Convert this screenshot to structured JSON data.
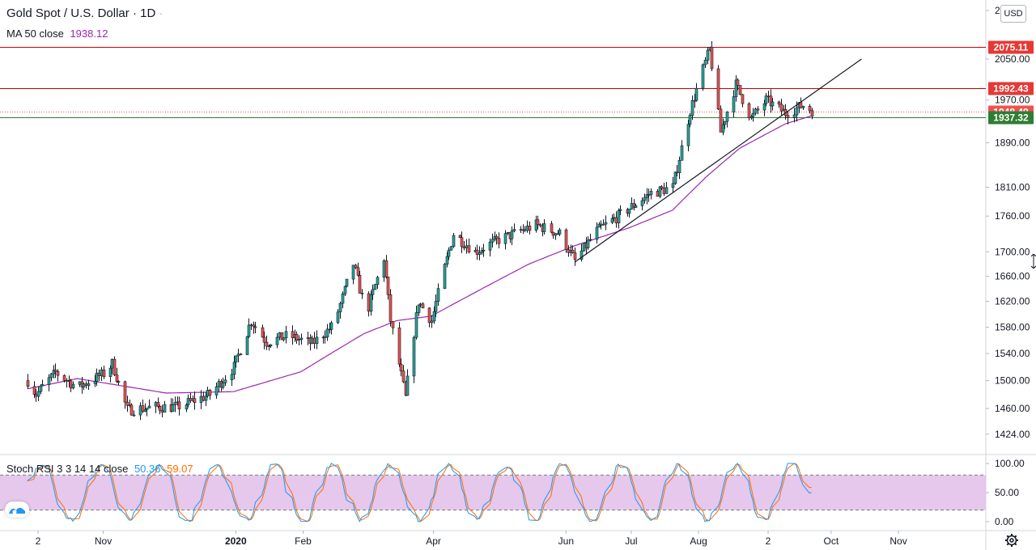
{
  "symbol": {
    "name": "Gold Spot",
    "sep": "/",
    "quote": "U.S. Dollar",
    "interval": "1D",
    "dot": "·"
  },
  "ma": {
    "label": "MA 50 close",
    "value": "1938.12",
    "color": "#9c27b0"
  },
  "stoch": {
    "label": "Stoch RSI 3 3 14 14 close",
    "k_value": "50.36",
    "d_value": "59.07",
    "k_color": "#2196f3",
    "d_color": "#ff6d00",
    "ticks": [
      "100.00",
      "50.00",
      "0.00"
    ],
    "band_upper": 80,
    "band_lower": 20
  },
  "currency_button": "USD",
  "price_axis_ticks": [
    "2",
    "2050.00",
    "1970.00",
    "1890.00",
    "1810.00",
    "1760.00",
    "1700.00",
    "1660.00",
    "1620.00",
    "1580.00",
    "1540.00",
    "1500.00",
    "1460.00",
    "1424.00"
  ],
  "price_levels": [
    {
      "label": "2075.11",
      "value": 2075.11,
      "color": "#e53935",
      "line_color": "#cc0000"
    },
    {
      "label": "1992.43",
      "value": 1992.43,
      "color": "#e53935",
      "line_color": "#cc0000"
    },
    {
      "label": "1948.49",
      "value": 1948.49,
      "color": "#ef5350",
      "line_color": "#ef5350",
      "dotted": true
    },
    {
      "label": "1937.32",
      "value": 1937.32,
      "color": "#2e7d32",
      "line_color": "#2e7d32"
    }
  ],
  "time_axis": [
    "2",
    "Nov",
    "2020",
    "Feb",
    "Apr",
    "Jun",
    "Jul",
    "Aug",
    "2",
    "Oct",
    "Nov"
  ],
  "time_axis_bold": "2020",
  "colors": {
    "up": "#26a69a",
    "down": "#ef5350",
    "trendline": "#131722",
    "band_fill": "#e1bee7",
    "grid": "#e0e3eb"
  },
  "icons": {
    "logo": "tradingview-logo-icon",
    "settings": "gear-icon"
  },
  "chart_data": {
    "type": "candlestick",
    "ticker": "Gold Spot / U.S. Dollar",
    "interval": "1D",
    "ylim": [
      1405,
      2110
    ],
    "price_path": [
      [
        "2019-09-27",
        1500
      ],
      [
        "2019-10-01",
        1480
      ],
      [
        "2019-10-10",
        1512
      ],
      [
        "2019-10-20",
        1490
      ],
      [
        "2019-11-01",
        1510
      ],
      [
        "2019-11-05",
        1525
      ],
      [
        "2019-11-12",
        1458
      ],
      [
        "2019-11-25",
        1462
      ],
      [
        "2019-12-05",
        1462
      ],
      [
        "2019-12-20",
        1480
      ],
      [
        "2019-12-31",
        1520
      ],
      [
        "2020-01-08",
        1590
      ],
      [
        "2020-01-15",
        1557
      ],
      [
        "2020-01-25",
        1567
      ],
      [
        "2020-02-05",
        1555
      ],
      [
        "2020-02-15",
        1583
      ],
      [
        "2020-02-24",
        1680
      ],
      [
        "2020-03-01",
        1600
      ],
      [
        "2020-03-09",
        1690
      ],
      [
        "2020-03-12",
        1590
      ],
      [
        "2020-03-19",
        1475
      ],
      [
        "2020-03-25",
        1620
      ],
      [
        "2020-03-31",
        1590
      ],
      [
        "2020-04-10",
        1730
      ],
      [
        "2020-04-20",
        1700
      ],
      [
        "2020-05-01",
        1720
      ],
      [
        "2020-05-18",
        1745
      ],
      [
        "2020-05-29",
        1730
      ],
      [
        "2020-06-05",
        1685
      ],
      [
        "2020-06-15",
        1735
      ],
      [
        "2020-06-25",
        1760
      ],
      [
        "2020-07-10",
        1800
      ],
      [
        "2020-07-20",
        1810
      ],
      [
        "2020-07-28",
        1950
      ],
      [
        "2020-08-06",
        2070
      ],
      [
        "2020-08-11",
        1910
      ],
      [
        "2020-08-18",
        2000
      ],
      [
        "2020-08-25",
        1935
      ],
      [
        "2020-09-01",
        1970
      ],
      [
        "2020-09-10",
        1945
      ],
      [
        "2020-09-18",
        1960
      ],
      [
        "2020-09-22",
        1950
      ]
    ],
    "ma50_path": [
      [
        "2019-09-27",
        1488
      ],
      [
        "2019-10-20",
        1503
      ],
      [
        "2019-11-30",
        1482
      ],
      [
        "2019-12-31",
        1484
      ],
      [
        "2020-01-31",
        1513
      ],
      [
        "2020-02-29",
        1570
      ],
      [
        "2020-03-15",
        1590
      ],
      [
        "2020-03-31",
        1597
      ],
      [
        "2020-05-15",
        1680
      ],
      [
        "2020-06-05",
        1710
      ],
      [
        "2020-06-30",
        1740
      ],
      [
        "2020-07-20",
        1770
      ],
      [
        "2020-08-05",
        1830
      ],
      [
        "2020-08-20",
        1880
      ],
      [
        "2020-09-10",
        1925
      ],
      [
        "2020-09-22",
        1940
      ]
    ],
    "trendline": {
      "from": [
        "2020-06-05",
        1683
      ],
      "to": [
        "2020-10-15",
        2050
      ]
    },
    "horizontal_levels": [
      2075.11,
      1992.43,
      1948.49,
      1937.32
    ],
    "ma50_last": 1938.12,
    "stoch_rsi": {
      "k_last": 50.36,
      "d_last": 59.07,
      "range": [
        0,
        100
      ]
    }
  }
}
